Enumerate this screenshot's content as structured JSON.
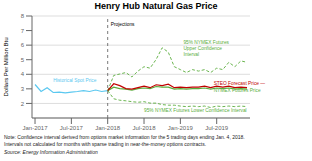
{
  "chart_data": {
    "type": "line",
    "title": "Henry Hub Natural Gas Price",
    "y_label": "Dollars Per Million Btu",
    "xlim": [
      -0.5,
      35.5
    ],
    "xticks": [
      {
        "value": 0,
        "label": "Jan-2017"
      },
      {
        "value": 6,
        "label": "Jul-2017"
      },
      {
        "value": 12,
        "label": "Jan-2018"
      },
      {
        "value": 18,
        "label": "Jul-2018"
      },
      {
        "value": 24,
        "label": "Jan-2019"
      },
      {
        "value": 30,
        "label": "Jul-2019"
      }
    ],
    "ylim": [
      1,
      8
    ],
    "yticks": [
      2,
      3,
      4,
      5,
      6,
      7,
      8
    ],
    "grid": true,
    "legend": false,
    "projection_start_x": 12,
    "annotations": [
      {
        "text": "Projections",
        "x": 12.5,
        "y": 7.6
      }
    ],
    "series": [
      {
        "name": "Historical Spot Price",
        "color": "#5bc8f0",
        "line_style": "solid",
        "label": {
          "x": 3,
          "y": 3.42
        },
        "x": [
          0,
          1,
          2,
          3,
          4,
          5,
          6,
          7,
          8,
          9,
          10,
          11,
          12
        ],
        "values": [
          3.3,
          2.82,
          3.08,
          2.75,
          2.78,
          2.72,
          2.78,
          2.82,
          2.88,
          2.82,
          2.92,
          2.82,
          2.88
        ]
      },
      {
        "name": "95% NYMEX Futures\nUpper Confidence\nInterval",
        "color": "#5aad3c",
        "line_style": "dashed",
        "label": {
          "x": 24.5,
          "y": 5.75
        },
        "x": [
          12,
          13,
          14,
          15,
          16,
          17,
          18,
          19,
          20,
          21,
          22,
          23,
          24,
          25,
          26,
          27,
          28,
          29,
          30,
          31,
          32,
          33,
          34,
          35
        ],
        "values": [
          2.88,
          3.92,
          4.02,
          4.12,
          3.82,
          4.22,
          4.52,
          4.42,
          5.02,
          5.82,
          5.52,
          4.52,
          4.32,
          4.12,
          4.32,
          4.22,
          4.32,
          4.12,
          4.42,
          4.32,
          4.82,
          4.52,
          4.92,
          4.82
        ]
      },
      {
        "name": "95% NYMEX Futures Lower Confidence Interval",
        "color": "#5aad3c",
        "line_style": "dashed",
        "label": {
          "x": 18,
          "y": 1.5
        },
        "x": [
          12,
          13,
          14,
          15,
          16,
          17,
          18,
          19,
          20,
          21,
          22,
          23,
          24,
          25,
          26,
          27,
          28,
          29,
          30,
          31,
          32,
          33,
          34,
          35
        ],
        "values": [
          2.88,
          2.32,
          2.22,
          2.18,
          2.12,
          2.08,
          2.12,
          2.02,
          2.02,
          1.92,
          1.88,
          1.88,
          1.82,
          1.78,
          1.82,
          1.78,
          1.82,
          1.72,
          1.82,
          1.78,
          1.82,
          1.78,
          1.82,
          1.78
        ]
      },
      {
        "name": "NYMEX Futures Price",
        "color": "#5aad3c",
        "line_style": "solid",
        "label": {
          "x": 29.5,
          "y": 2.88
        },
        "x": [
          12,
          13,
          14,
          15,
          16,
          17,
          18,
          19,
          20,
          21,
          22,
          23,
          24,
          25,
          26,
          27,
          28,
          29,
          30,
          31,
          32,
          33,
          34,
          35
        ],
        "values": [
          2.88,
          3.12,
          3.02,
          2.98,
          2.92,
          3.02,
          3.06,
          3.02,
          3.16,
          3.12,
          3.12,
          2.98,
          3.02,
          2.98,
          3.02,
          3.02,
          3.06,
          2.98,
          3.06,
          3.02,
          3.06,
          2.98,
          3.02,
          2.98
        ]
      },
      {
        "name": "STEO Forecast Price  —",
        "color": "#c00000",
        "line_style": "solid",
        "label": {
          "x": 29.5,
          "y": 3.38
        },
        "x": [
          12,
          13,
          14,
          15,
          16,
          17,
          18,
          19,
          20,
          21,
          22,
          23,
          24,
          25,
          26,
          27,
          28,
          29,
          30,
          31,
          32,
          33,
          34,
          35
        ],
        "values": [
          2.88,
          3.35,
          3.22,
          3.02,
          2.98,
          3.08,
          3.18,
          3.08,
          3.28,
          3.22,
          3.32,
          3.08,
          3.12,
          3.08,
          3.12,
          3.12,
          3.18,
          3.08,
          3.18,
          3.12,
          3.18,
          3.08,
          3.12,
          3.08
        ]
      }
    ],
    "note": "Note: Confidence interval derived from options market information for the 5 trading days ending Jan. 4, 2018.\nIntervals not calculated for months with sparse trading in near-the-money options contracts.",
    "source": "Source: Energy Information Administration"
  }
}
